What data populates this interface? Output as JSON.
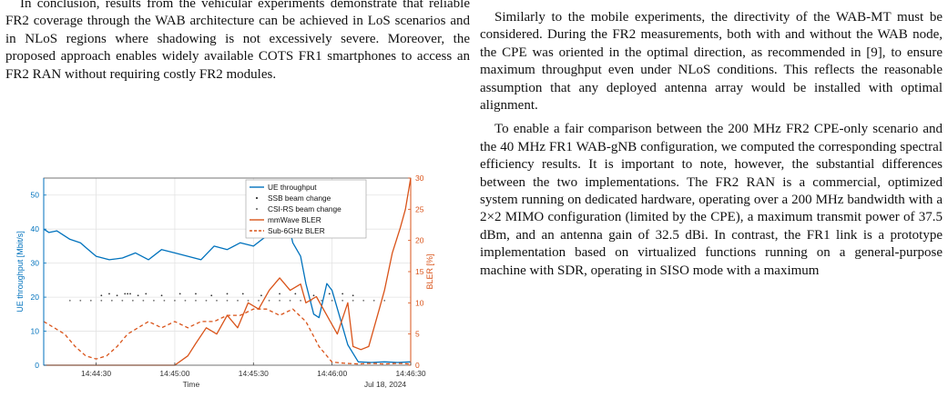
{
  "left_column": {
    "paragraph": "In conclusion, results from the vehicular experiments demonstrate that reliable FR2 coverage through the WAB architecture can be achieved in LoS scenarios and in NLoS regions where shadowing is not excessively severe. Moreover, the proposed approach enables widely available COTS FR1 smartphones to access an FR2 RAN without requiring costly FR2 modules."
  },
  "right_column": {
    "paragraph_1": "Similarly to the mobile experiments, the directivity of the WAB-MT must be considered. During the FR2 measurements, both with and without the WAB node, the CPE was oriented in the optimal direction, as recommended in [9], to ensure maximum throughput even under NLoS conditions. This reflects the reasonable assumption that any deployed antenna array would be installed with optimal alignment.",
    "paragraph_2": "To enable a fair comparison between the 200 MHz FR2 CPE-only scenario and the 40 MHz FR1 WAB-gNB configuration, we computed the corresponding spectral efficiency results. It is important to note, however, the substantial differences between the two implementations. The FR2 RAN is a commercial, optimized system running on dedicated hardware, operating over a 200 MHz bandwidth with a 2×2 MIMO configuration (limited by the CPE), a maximum transmit power of 37.5 dBm, and an antenna gain of 32.5 dBi. In contrast, the FR1 link is a prototype implementation based on virtualized functions running on a general-purpose machine with SDR, operating in SISO mode with a maximum"
  },
  "chart_data": {
    "type": "line",
    "xlabel": "Time",
    "x_date_label": "Jul 18, 2024",
    "x_ticks": [
      "14:44:30",
      "14:45:00",
      "14:45:30",
      "14:46:00",
      "14:46:30"
    ],
    "xlim": [
      "14:44:10",
      "14:46:30"
    ],
    "ylabel_left": "UE throughput [Mbit/s]",
    "ylabel_right": "BLER [%]",
    "ylim_left": [
      0,
      55
    ],
    "ylim_right": [
      0,
      30
    ],
    "y_ticks_left": [
      "0",
      "10",
      "20",
      "30",
      "40",
      "50"
    ],
    "y_ticks_right": [
      "0",
      "5",
      "10",
      "15",
      "20",
      "25",
      "30"
    ],
    "grid": true,
    "legend_position": "top-right",
    "colors": {
      "blue": "#0072BD",
      "orange": "#D95319"
    },
    "series": [
      {
        "name": "UE throughput",
        "axis": "left",
        "style": "solid",
        "color": "#0072BD",
        "t": [
          0,
          2,
          5,
          8,
          10,
          14,
          17,
          20,
          25,
          30,
          35,
          40,
          45,
          50,
          55,
          60,
          65,
          70,
          75,
          80,
          85,
          88,
          90,
          93,
          95,
          98,
          100,
          103,
          105,
          108,
          110,
          113,
          116,
          120,
          125,
          130,
          135,
          140
        ],
        "y": [
          40,
          39,
          39.5,
          38,
          37,
          36,
          34,
          32,
          31,
          31.5,
          33,
          31,
          34,
          33,
          32,
          31,
          35,
          34,
          36,
          35,
          38,
          44,
          46,
          43,
          36,
          32,
          24,
          15,
          14,
          24,
          22,
          14,
          6,
          1,
          0.8,
          1,
          0.8,
          1
        ]
      },
      {
        "name": "SSB beam change",
        "axis": "left",
        "style": "markers",
        "color": "#333333",
        "t": [
          22,
          25,
          28,
          31,
          32,
          33,
          36,
          39,
          45,
          52,
          58,
          64,
          70,
          76,
          83,
          90,
          96,
          103,
          109,
          114,
          118
        ],
        "y": [
          20.5,
          21,
          20.5,
          21,
          21,
          21,
          20.5,
          21,
          20.5,
          21,
          21,
          20.5,
          21,
          21,
          20.5,
          21,
          21,
          20.5,
          21,
          21,
          20.5
        ]
      },
      {
        "name": "CSI-RS beam change",
        "axis": "left",
        "style": "markers",
        "color": "#777777",
        "t": [
          10,
          14,
          18,
          22,
          26,
          30,
          34,
          38,
          42,
          46,
          50,
          54,
          58,
          62,
          66,
          70,
          74,
          78,
          82,
          86,
          90,
          94,
          98,
          102,
          106,
          110,
          114,
          118,
          122,
          126,
          130
        ],
        "y": [
          19,
          19,
          19,
          19,
          19,
          19,
          19,
          19,
          19,
          19,
          19,
          19,
          19,
          19,
          19,
          19,
          19,
          19,
          19,
          19,
          19,
          19,
          19,
          19,
          19,
          19,
          19,
          19,
          19,
          19,
          19
        ]
      },
      {
        "name": "mmWave BLER",
        "axis": "right",
        "style": "solid",
        "color": "#D95319",
        "t": [
          0,
          10,
          20,
          30,
          40,
          45,
          50,
          55,
          58,
          62,
          66,
          70,
          74,
          78,
          82,
          86,
          90,
          94,
          98,
          100,
          104,
          108,
          112,
          116,
          118,
          121,
          124,
          126,
          128,
          130,
          133,
          136,
          138,
          140
        ],
        "y": [
          0,
          0,
          0,
          0,
          0,
          0,
          0,
          1.5,
          3.5,
          6,
          5,
          8,
          6,
          10,
          9,
          12,
          14,
          12,
          13,
          10,
          11,
          8,
          5,
          10,
          3,
          2.5,
          3,
          6,
          9,
          12,
          18,
          22,
          25,
          30
        ]
      },
      {
        "name": "Sub-6GHz BLER",
        "axis": "right",
        "style": "dashed",
        "color": "#D95319",
        "t": [
          0,
          4,
          8,
          12,
          16,
          20,
          24,
          28,
          32,
          36,
          40,
          45,
          50,
          55,
          60,
          65,
          70,
          75,
          80,
          85,
          90,
          95,
          100,
          105,
          110,
          115,
          120,
          125,
          130,
          135,
          140
        ],
        "y": [
          7,
          6,
          5,
          3,
          1.5,
          1,
          1.5,
          3,
          5,
          6,
          7,
          6,
          7,
          6,
          7,
          7,
          8,
          8,
          9,
          9,
          8,
          9,
          7,
          3,
          0.5,
          0.3,
          0.2,
          0.3,
          0.2,
          0.3,
          0.2
        ]
      }
    ]
  }
}
